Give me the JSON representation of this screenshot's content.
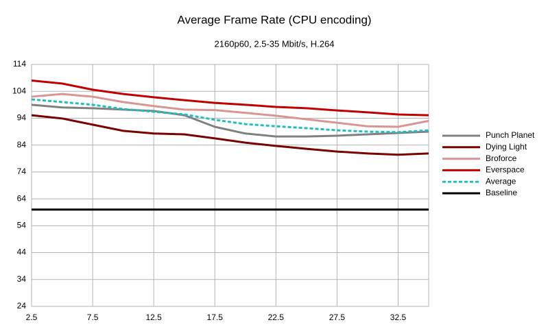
{
  "chart_data": {
    "type": "line",
    "title": "Average Frame Rate (CPU encoding)",
    "subtitle": "2160p60, 2.5-35 Mbit/s, H.264",
    "x": [
      2.5,
      5,
      7.5,
      10,
      12.5,
      15,
      17.5,
      20,
      22.5,
      25,
      27.5,
      30,
      32.5,
      35
    ],
    "series": [
      {
        "name": "Punch Planet",
        "color": "#808080",
        "values": [
          99,
          98,
          97.7,
          97.2,
          96.7,
          95.1,
          90.8,
          88.3,
          87.2,
          87.2,
          87.5,
          88,
          88.5,
          89
        ]
      },
      {
        "name": "Dying Light",
        "color": "#7b0000",
        "values": [
          95.1,
          93.9,
          91.6,
          89.3,
          88.3,
          88,
          86.5,
          84.9,
          83.7,
          82.6,
          81.6,
          80.9,
          80.4,
          80.9
        ]
      },
      {
        "name": "Broforce",
        "color": "#d99594",
        "values": [
          102,
          103,
          102,
          100,
          98.5,
          97.2,
          97,
          96,
          94.9,
          93.6,
          92.3,
          91,
          90.8,
          93
        ]
      },
      {
        "name": "Everspace",
        "color": "#c00000",
        "values": [
          108,
          106.9,
          104.6,
          103,
          101.8,
          100.7,
          99.7,
          99,
          98.2,
          97.7,
          96.9,
          96.2,
          95.4,
          95.1
        ]
      },
      {
        "name": "Average",
        "color": "#1fbfbf",
        "dashed": true,
        "values": [
          101,
          100,
          99,
          97.4,
          96.4,
          95.4,
          93.4,
          91.8,
          91,
          90.3,
          89.5,
          89,
          88.8,
          89.5
        ]
      },
      {
        "name": "Baseline",
        "color": "#000000",
        "values": [
          60,
          60,
          60,
          60,
          60,
          60,
          60,
          60,
          60,
          60,
          60,
          60,
          60,
          60
        ]
      }
    ],
    "xlim": [
      2.5,
      35
    ],
    "xticks": [
      2.5,
      7.5,
      12.5,
      17.5,
      22.5,
      27.5,
      32.5
    ],
    "ylim": [
      24,
      114
    ],
    "yticks": [
      24,
      34,
      44,
      54,
      64,
      74,
      84,
      94,
      104,
      114
    ],
    "grid": true,
    "legend": "right"
  }
}
